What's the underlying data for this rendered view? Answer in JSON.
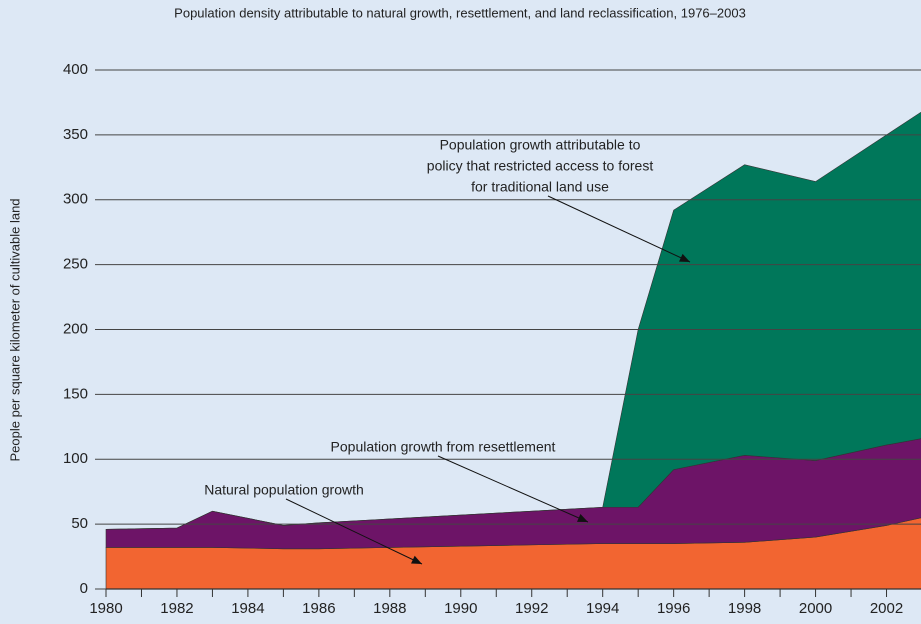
{
  "chart_data": {
    "type": "stacked_area",
    "title": "Population density attributable to natural growth, resettlement, and land reclassification, 1976–2003",
    "y_label": "People per square kilometer of cultivable land",
    "x": [
      1980,
      1982,
      1983,
      1985,
      1986,
      1988,
      1990,
      1992,
      1994,
      1995,
      1996,
      1998,
      2000,
      2002,
      2003
    ],
    "series": [
      {
        "name": "Natural population growth",
        "color": "#f26531",
        "values": [
          32,
          32,
          32,
          31,
          31,
          32,
          33,
          34,
          35,
          35,
          35,
          36,
          40,
          49,
          55
        ]
      },
      {
        "name": "Population growth from resettlement",
        "color": "#6d1467",
        "values": [
          14,
          15,
          28,
          18,
          20,
          22,
          24,
          26,
          28,
          28,
          57,
          67,
          59,
          62,
          61
        ]
      },
      {
        "name": "Population growth attributable to policy that restricted access to forest for traditional land use",
        "color": "#00775a",
        "values": [
          0,
          0,
          0,
          0,
          0,
          0,
          0,
          0,
          0,
          137,
          200,
          224,
          215,
          239,
          252
        ]
      }
    ],
    "annotations": [
      {
        "lines": [
          "Population growth attributable to",
          "policy that restricted access to forest",
          "for traditional land use"
        ]
      },
      {
        "lines": [
          "Population growth from resettlement"
        ]
      },
      {
        "lines": [
          "Natural population growth"
        ]
      }
    ],
    "xlim": [
      1980,
      2003
    ],
    "xticks": [
      1980,
      1982,
      1984,
      1986,
      1988,
      1990,
      1992,
      1994,
      1996,
      1998,
      2000,
      2002
    ],
    "ylim": [
      0,
      400
    ],
    "yticks": [
      0,
      50,
      100,
      150,
      200,
      250,
      300,
      350,
      400
    ],
    "grid": true
  }
}
